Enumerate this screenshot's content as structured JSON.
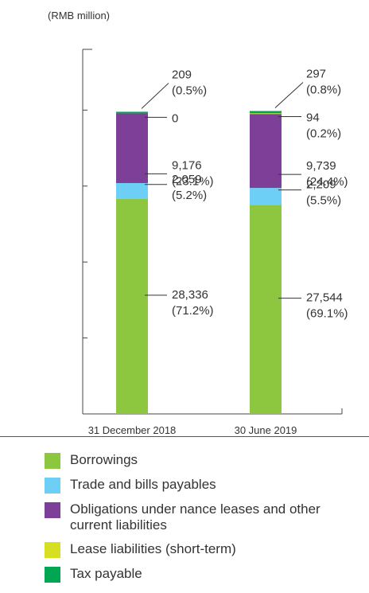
{
  "chart_data": {
    "type": "bar",
    "stacked": true,
    "unit_label": "(RMB million)",
    "categories": [
      "31 December 2018",
      "30 June 2019"
    ],
    "series": [
      {
        "name": "Borrowings",
        "color": "#8dc63f",
        "values": [
          28336,
          27544
        ],
        "labels": [
          [
            "28,336",
            "(71.2%)"
          ],
          [
            "27,544",
            "(69.1%)"
          ]
        ]
      },
      {
        "name": "Trade and bills payables",
        "color": "#6dcff6",
        "values": [
          2059,
          2209
        ],
        "labels": [
          [
            "2,059",
            "(5.2%)"
          ],
          [
            "2,209",
            "(5.5%)"
          ]
        ]
      },
      {
        "name": "Obligations under nance leases and other current liabilities",
        "color": "#7e3f98",
        "values": [
          9176,
          9739
        ],
        "labels": [
          [
            "9,176",
            "(23.1%)"
          ],
          [
            "9,739",
            "(24.4%)"
          ]
        ]
      },
      {
        "name": "Lease liabilities (short-term)",
        "color": "#d7df23",
        "values": [
          0,
          94
        ],
        "labels": [
          [
            "0"
          ],
          [
            "94",
            "(0.2%)"
          ]
        ]
      },
      {
        "name": "Tax payable",
        "color": "#00a651",
        "values": [
          209,
          297
        ],
        "labels": [
          [
            "209",
            "(0.5%)"
          ],
          [
            "297",
            "(0.8%)"
          ]
        ]
      }
    ],
    "ylim": [
      0,
      48000
    ],
    "grid": false,
    "legend_position": "bottom"
  },
  "legend": [
    {
      "label": "Borrowings",
      "color": "#8dc63f"
    },
    {
      "label": "Trade and bills payables",
      "color": "#6dcff6"
    },
    {
      "label": "Obligations under nance leases and other current liabilities",
      "color": "#7e3f98"
    },
    {
      "label": "Lease liabilities (short-term)",
      "color": "#d7df23"
    },
    {
      "label": "Tax payable",
      "color": "#00a651"
    }
  ]
}
